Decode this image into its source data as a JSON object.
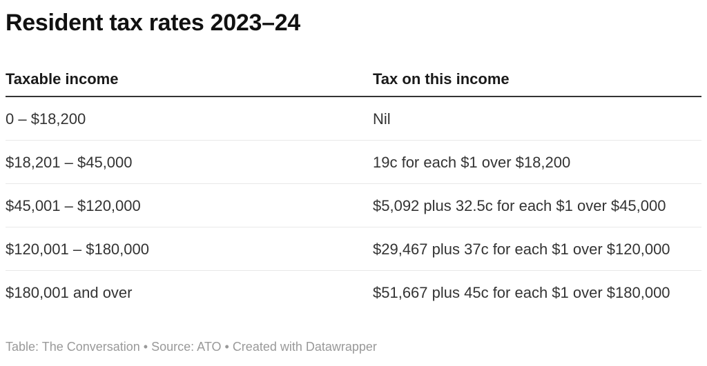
{
  "chart_data": {
    "type": "table",
    "title": "Resident tax rates 2023–24",
    "columns": [
      "Taxable income",
      "Tax on this income"
    ],
    "rows": [
      [
        "0 – $18,200",
        "Nil"
      ],
      [
        "$18,201 – $45,000",
        "19c for each $1 over $18,200"
      ],
      [
        "$45,001 – $120,000",
        "$5,092 plus 32.5c for each $1 over $45,000"
      ],
      [
        "$120,001 – $180,000",
        "$29,467 plus 37c for each $1 over $120,000"
      ],
      [
        "$180,001 and over",
        "$51,667 plus 45c for each $1 over $180,000"
      ]
    ],
    "layout": {
      "header_border_color": "#333333",
      "row_divider_color": "#e8e8e8",
      "grid": "horizontal-only"
    }
  },
  "footer": {
    "table_label": "Table: ",
    "table_credit": "The Conversation",
    "separator": "•",
    "source_label": "Source: ",
    "source_credit": "ATO",
    "created_label": "Created with ",
    "created_credit": "Datawrapper"
  },
  "colors": {
    "title_text": "#111111",
    "header_text": "#1a1a1a",
    "body_text": "#333333",
    "muted_text": "#999999",
    "header_border": "#333333",
    "row_divider": "#e8e8e8",
    "background": "#ffffff"
  }
}
